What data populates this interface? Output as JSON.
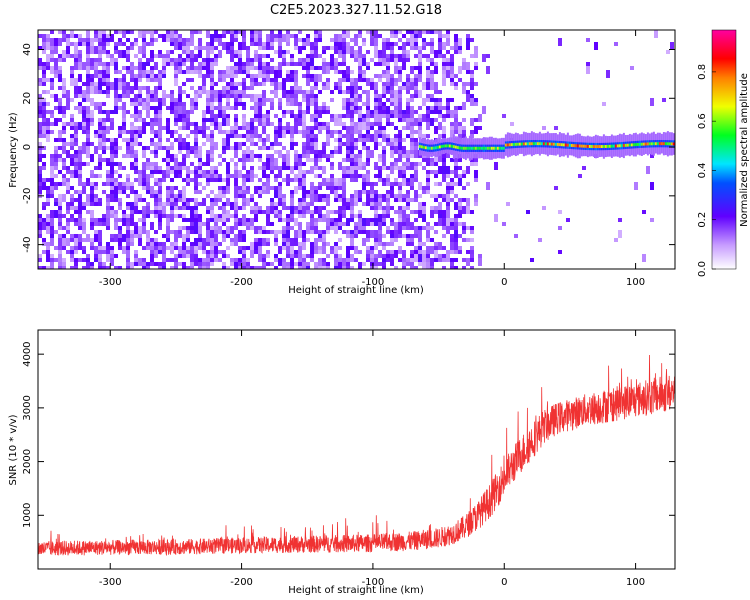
{
  "figure": {
    "title": "C2E5.2023.327.11.52.G18"
  },
  "chart_data": [
    {
      "type": "heatmap",
      "xlabel": "Height of straight line (km)",
      "ylabel": "Frequency (Hz)",
      "xlim": [
        -355,
        130
      ],
      "ylim": [
        -50,
        48
      ],
      "x_ticks": [
        -300,
        -200,
        -100,
        0,
        100
      ],
      "x_tick_labels": [
        "-300",
        "-200",
        "-100",
        "0",
        "100"
      ],
      "y_ticks": [
        -40,
        -20,
        0,
        20,
        40
      ],
      "y_tick_labels": [
        "-40",
        "-20",
        "0",
        "20",
        "40"
      ],
      "colorbar": {
        "label": "Normalized spectral amplitude",
        "range": [
          0,
          0.97
        ],
        "ticks": [
          0,
          0.2,
          0.4,
          0.6,
          0.8
        ],
        "tick_labels": [
          "0.0",
          "0.2",
          "0.4",
          "0.6",
          "0.8"
        ],
        "colormap": "rainbow: white-purple-blue-cyan-green-yellow-red-magenta"
      },
      "features": {
        "noise_region_x": [
          -355,
          -40
        ],
        "noise_fade_end_x": -15,
        "signal_track_x": [
          -65,
          130
        ],
        "signal_track_freq_hz": [
          -3,
          4
        ],
        "signal_track_peak_amplitude": 0.9
      }
    },
    {
      "type": "line",
      "xlabel": "Height of straight line (km)",
      "ylabel": "SNR (10 * v/v)",
      "xlim": [
        -355,
        130
      ],
      "ylim": [
        0,
        4450
      ],
      "x_ticks": [
        -300,
        -200,
        -100,
        0,
        100
      ],
      "x_tick_labels": [
        "-300",
        "-200",
        "-100",
        "0",
        "100"
      ],
      "y_ticks": [
        1000,
        2000,
        3000,
        4000
      ],
      "y_tick_labels": [
        "1000",
        "2000",
        "3000",
        "4000"
      ],
      "color": "#f03232",
      "series": [
        {
          "x": [
            -355,
            -300,
            -250,
            -200,
            -150,
            -100,
            -70,
            -50,
            -40,
            -30,
            -20,
            -10,
            0,
            10,
            20,
            30,
            40,
            60,
            80,
            100,
            120,
            130
          ],
          "mean": [
            380,
            400,
            410,
            440,
            460,
            480,
            520,
            580,
            650,
            780,
            1000,
            1300,
            1700,
            2050,
            2350,
            2650,
            2800,
            2950,
            3050,
            3150,
            3250,
            3300
          ],
          "spread": [
            280,
            280,
            290,
            300,
            320,
            340,
            360,
            380,
            400,
            450,
            550,
            650,
            700,
            700,
            700,
            650,
            600,
            600,
            650,
            650,
            700,
            700
          ]
        }
      ]
    }
  ]
}
